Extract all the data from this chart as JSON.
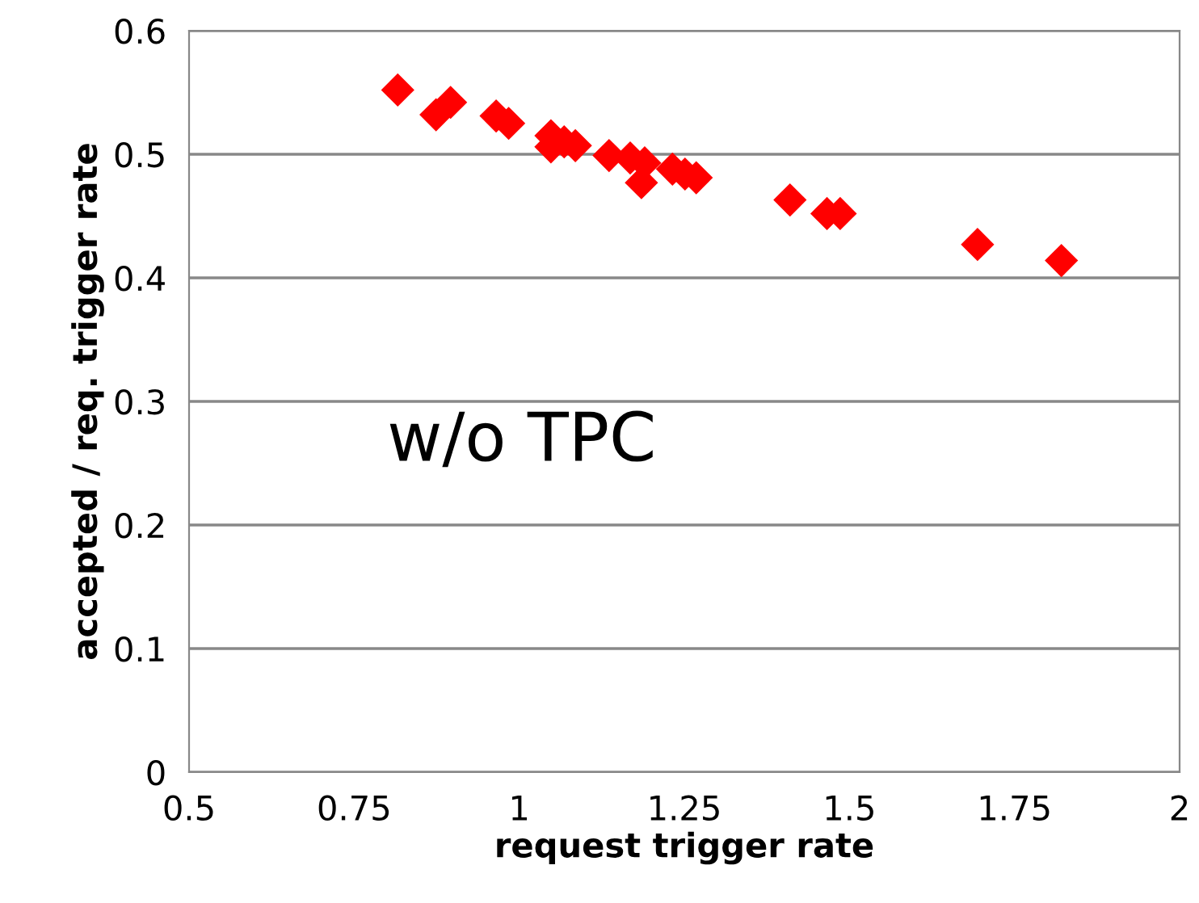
{
  "chart_data": {
    "type": "scatter",
    "xlabel": "request trigger rate",
    "ylabel": "accepted / req. trigger rate",
    "annotations": [
      "w/o TPC"
    ],
    "x": [
      0.816,
      0.874,
      0.896,
      0.965,
      0.984,
      1.048,
      1.048,
      1.068,
      1.085,
      1.136,
      1.168,
      1.19,
      1.185,
      1.232,
      1.251,
      1.268,
      1.41,
      1.466,
      1.486,
      1.694,
      1.821
    ],
    "values": [
      0.552,
      0.532,
      0.542,
      0.531,
      0.525,
      0.515,
      0.506,
      0.51,
      0.507,
      0.499,
      0.497,
      0.493,
      0.477,
      0.488,
      0.484,
      0.481,
      0.463,
      0.452,
      0.452,
      0.427,
      0.414
    ],
    "color": "#ff0000",
    "marker": "diamond",
    "xlim": [
      0.5,
      2
    ],
    "ylim": [
      0,
      0.6
    ],
    "xticks": [
      0.5,
      0.75,
      1,
      1.25,
      1.5,
      1.75,
      2
    ],
    "yticks": [
      0,
      0.1,
      0.2,
      0.3,
      0.4,
      0.5,
      0.6
    ],
    "grid": "y",
    "legend": false
  }
}
